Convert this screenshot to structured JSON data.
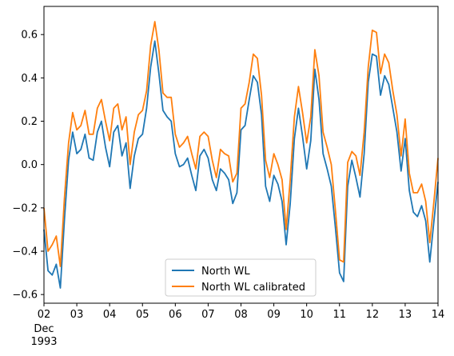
{
  "chart_data": {
    "type": "line",
    "title": "",
    "xlabel": "",
    "ylabel": "",
    "x_axis": {
      "range": [
        "1993-12-02",
        "1993-12-14"
      ],
      "ticks": [
        {
          "date": "1993-12-02",
          "label": "02",
          "sublabel": "Dec\n1993"
        },
        {
          "date": "1993-12-03",
          "label": "03"
        },
        {
          "date": "1993-12-04",
          "label": "04"
        },
        {
          "date": "1993-12-05",
          "label": "05"
        },
        {
          "date": "1993-12-06",
          "label": "06"
        },
        {
          "date": "1993-12-07",
          "label": "07"
        },
        {
          "date": "1993-12-08",
          "label": "08"
        },
        {
          "date": "1993-12-09",
          "label": "09"
        },
        {
          "date": "1993-12-10",
          "label": "10"
        },
        {
          "date": "1993-12-11",
          "label": "11"
        },
        {
          "date": "1993-12-12",
          "label": "12"
        },
        {
          "date": "1993-12-13",
          "label": "13"
        },
        {
          "date": "1993-12-14",
          "label": "14"
        }
      ]
    },
    "y_axis": {
      "range": [
        -0.64,
        0.73
      ],
      "ticks": [
        {
          "value": -0.6,
          "label": "−0.6"
        },
        {
          "value": -0.4,
          "label": "−0.4"
        },
        {
          "value": -0.2,
          "label": "−0.2"
        },
        {
          "value": 0.0,
          "label": "0.0"
        },
        {
          "value": 0.2,
          "label": "0.2"
        },
        {
          "value": 0.4,
          "label": "0.4"
        },
        {
          "value": 0.6,
          "label": "0.6"
        }
      ]
    },
    "grid": false,
    "legend": {
      "position": "lower center"
    },
    "x": [
      "1993-12-02 00:00",
      "1993-12-02 03:00",
      "1993-12-02 06:00",
      "1993-12-02 09:00",
      "1993-12-02 12:00",
      "1993-12-02 15:00",
      "1993-12-02 18:00",
      "1993-12-02 21:00",
      "1993-12-03 00:00",
      "1993-12-03 03:00",
      "1993-12-03 06:00",
      "1993-12-03 09:00",
      "1993-12-03 12:00",
      "1993-12-03 15:00",
      "1993-12-03 18:00",
      "1993-12-03 21:00",
      "1993-12-04 00:00",
      "1993-12-04 03:00",
      "1993-12-04 06:00",
      "1993-12-04 09:00",
      "1993-12-04 12:00",
      "1993-12-04 15:00",
      "1993-12-04 18:00",
      "1993-12-04 21:00",
      "1993-12-05 00:00",
      "1993-12-05 03:00",
      "1993-12-05 06:00",
      "1993-12-05 09:00",
      "1993-12-05 12:00",
      "1993-12-05 15:00",
      "1993-12-05 18:00",
      "1993-12-05 21:00",
      "1993-12-06 00:00",
      "1993-12-06 03:00",
      "1993-12-06 06:00",
      "1993-12-06 09:00",
      "1993-12-06 12:00",
      "1993-12-06 15:00",
      "1993-12-06 18:00",
      "1993-12-06 21:00",
      "1993-12-07 00:00",
      "1993-12-07 03:00",
      "1993-12-07 06:00",
      "1993-12-07 09:00",
      "1993-12-07 12:00",
      "1993-12-07 15:00",
      "1993-12-07 18:00",
      "1993-12-07 21:00",
      "1993-12-08 00:00",
      "1993-12-08 03:00",
      "1993-12-08 06:00",
      "1993-12-08 09:00",
      "1993-12-08 12:00",
      "1993-12-08 15:00",
      "1993-12-08 18:00",
      "1993-12-08 21:00",
      "1993-12-09 00:00",
      "1993-12-09 03:00",
      "1993-12-09 06:00",
      "1993-12-09 09:00",
      "1993-12-09 12:00",
      "1993-12-09 15:00",
      "1993-12-09 18:00",
      "1993-12-09 21:00",
      "1993-12-10 00:00",
      "1993-12-10 03:00",
      "1993-12-10 06:00",
      "1993-12-10 09:00",
      "1993-12-10 12:00",
      "1993-12-10 15:00",
      "1993-12-10 18:00",
      "1993-12-10 21:00",
      "1993-12-11 00:00",
      "1993-12-11 03:00",
      "1993-12-11 06:00",
      "1993-12-11 09:00",
      "1993-12-11 12:00",
      "1993-12-11 15:00",
      "1993-12-11 18:00",
      "1993-12-11 21:00",
      "1993-12-12 00:00",
      "1993-12-12 03:00",
      "1993-12-12 06:00",
      "1993-12-12 09:00",
      "1993-12-12 12:00",
      "1993-12-12 15:00",
      "1993-12-12 18:00",
      "1993-12-12 21:00",
      "1993-12-13 00:00",
      "1993-12-13 03:00",
      "1993-12-13 06:00",
      "1993-12-13 09:00",
      "1993-12-13 12:00",
      "1993-12-13 15:00",
      "1993-12-13 18:00",
      "1993-12-13 21:00",
      "1993-12-14 00:00"
    ],
    "series": [
      {
        "name": "North WL",
        "color": "#1f77b4",
        "values": [
          -0.3,
          -0.49,
          -0.51,
          -0.46,
          -0.57,
          -0.25,
          0.02,
          0.15,
          0.05,
          0.07,
          0.14,
          0.03,
          0.02,
          0.15,
          0.2,
          0.08,
          -0.01,
          0.15,
          0.18,
          0.04,
          0.1,
          -0.11,
          0.04,
          0.12,
          0.14,
          0.26,
          0.45,
          0.57,
          0.42,
          0.25,
          0.22,
          0.2,
          0.05,
          -0.01,
          0.0,
          0.03,
          -0.05,
          -0.12,
          0.04,
          0.07,
          0.03,
          -0.07,
          -0.12,
          -0.02,
          -0.04,
          -0.07,
          -0.18,
          -0.13,
          0.16,
          0.18,
          0.3,
          0.41,
          0.38,
          0.23,
          -0.1,
          -0.17,
          -0.05,
          -0.09,
          -0.17,
          -0.37,
          -0.18,
          0.12,
          0.26,
          0.13,
          -0.02,
          0.11,
          0.44,
          0.3,
          0.05,
          -0.02,
          -0.1,
          -0.29,
          -0.5,
          -0.54,
          -0.1,
          0.02,
          -0.06,
          -0.15,
          0.05,
          0.38,
          0.51,
          0.5,
          0.32,
          0.41,
          0.37,
          0.26,
          0.15,
          -0.03,
          0.12,
          -0.12,
          -0.22,
          -0.24,
          -0.19,
          -0.26,
          -0.45,
          -0.26,
          -0.08
        ]
      },
      {
        "name": "North WL calibrated",
        "color": "#ff7f0e",
        "values": [
          -0.2,
          -0.4,
          -0.37,
          -0.33,
          -0.47,
          -0.15,
          0.1,
          0.24,
          0.16,
          0.18,
          0.25,
          0.14,
          0.14,
          0.26,
          0.3,
          0.2,
          0.11,
          0.26,
          0.28,
          0.16,
          0.22,
          0.0,
          0.15,
          0.23,
          0.25,
          0.34,
          0.55,
          0.66,
          0.53,
          0.33,
          0.31,
          0.31,
          0.14,
          0.08,
          0.1,
          0.13,
          0.05,
          -0.02,
          0.13,
          0.15,
          0.13,
          0.02,
          -0.06,
          0.07,
          0.05,
          0.04,
          -0.08,
          -0.04,
          0.26,
          0.28,
          0.38,
          0.51,
          0.49,
          0.32,
          0.02,
          -0.06,
          0.05,
          0.0,
          -0.07,
          -0.3,
          -0.07,
          0.22,
          0.36,
          0.24,
          0.1,
          0.22,
          0.53,
          0.41,
          0.15,
          0.08,
          0.0,
          -0.21,
          -0.44,
          -0.45,
          0.01,
          0.06,
          0.04,
          -0.05,
          0.15,
          0.45,
          0.62,
          0.61,
          0.42,
          0.51,
          0.47,
          0.34,
          0.23,
          0.04,
          0.21,
          -0.04,
          -0.13,
          -0.13,
          -0.09,
          -0.17,
          -0.36,
          -0.17,
          0.03
        ]
      }
    ]
  }
}
